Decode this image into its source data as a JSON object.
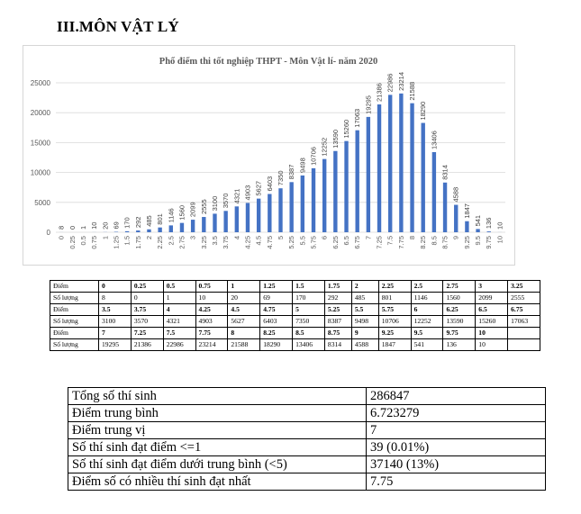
{
  "heading": "III.MÔN VẬT LÝ",
  "chart_data": {
    "type": "bar",
    "title": "Phổ điểm thi tốt nghiệp THPT - Môn Vật lí- năm 2020",
    "xlabel": "",
    "ylabel": "",
    "ylim": [
      0,
      25000
    ],
    "yticks": [
      0,
      5000,
      10000,
      15000,
      20000,
      25000
    ],
    "grid": true,
    "bar_color": "#4472c4",
    "categories": [
      "0",
      "0.25",
      "0.5",
      "0.75",
      "1",
      "1.25",
      "1.5",
      "1.75",
      "2",
      "2.25",
      "2.5",
      "2.75",
      "3",
      "3.25",
      "3.5",
      "3.75",
      "4",
      "4.25",
      "4.5",
      "4.75",
      "5",
      "5.25",
      "5.5",
      "5.75",
      "6",
      "6.25",
      "6.5",
      "6.75",
      "7",
      "7.25",
      "7.5",
      "7.75",
      "8",
      "8.25",
      "8.5",
      "8.75",
      "9",
      "9.25",
      "9.5",
      "9.75",
      "10"
    ],
    "values": [
      8,
      0,
      1,
      10,
      20,
      69,
      170,
      292,
      485,
      801,
      1146,
      1560,
      2099,
      2555,
      3100,
      3570,
      4321,
      4903,
      5627,
      6403,
      7350,
      8387,
      9498,
      10706,
      12252,
      13590,
      15260,
      17063,
      19295,
      21386,
      22986,
      23214,
      21588,
      18290,
      13406,
      8314,
      4588,
      1847,
      541,
      136,
      10
    ]
  },
  "score_table": {
    "label_score": "Điểm",
    "label_count": "Số lượng",
    "rows": [
      {
        "scores": [
          "0",
          "0.25",
          "0.5",
          "0.75",
          "1",
          "1.25",
          "1.5",
          "1.75",
          "2",
          "2.25",
          "2.5",
          "2.75",
          "3",
          "3.25"
        ],
        "counts": [
          "8",
          "0",
          "1",
          "10",
          "20",
          "69",
          "170",
          "292",
          "485",
          "801",
          "1146",
          "1560",
          "2099",
          "2555"
        ]
      },
      {
        "scores": [
          "3.5",
          "3.75",
          "4",
          "4.25",
          "4.5",
          "4.75",
          "5",
          "5.25",
          "5.5",
          "5.75",
          "6",
          "6.25",
          "6.5",
          "6.75"
        ],
        "counts": [
          "3100",
          "3570",
          "4321",
          "4903",
          "5627",
          "6403",
          "7350",
          "8387",
          "9498",
          "10706",
          "12252",
          "13590",
          "15260",
          "17063"
        ]
      },
      {
        "scores": [
          "7",
          "7.25",
          "7.5",
          "7.75",
          "8",
          "8.25",
          "8.5",
          "8.75",
          "9",
          "9.25",
          "9.5",
          "9.75",
          "10",
          ""
        ],
        "counts": [
          "19295",
          "21386",
          "22986",
          "23214",
          "21588",
          "18290",
          "13406",
          "8314",
          "4588",
          "1847",
          "541",
          "136",
          "10",
          ""
        ]
      }
    ]
  },
  "stats": [
    {
      "label": "Tổng số thí sinh",
      "value": "286847"
    },
    {
      "label": "Điểm trung bình",
      "value": "6.723279"
    },
    {
      "label": "Điểm trung vị",
      "value": "7"
    },
    {
      "label": "Số thí sinh đạt điểm <=1",
      "value": "39 (0.01%)"
    },
    {
      "label": "Số thí sinh đạt điểm dưới trung bình (<5)",
      "value": "37140 (13%)"
    },
    {
      "label": "Điểm số có nhiều thí sinh đạt nhất",
      "value": "7.75"
    }
  ]
}
